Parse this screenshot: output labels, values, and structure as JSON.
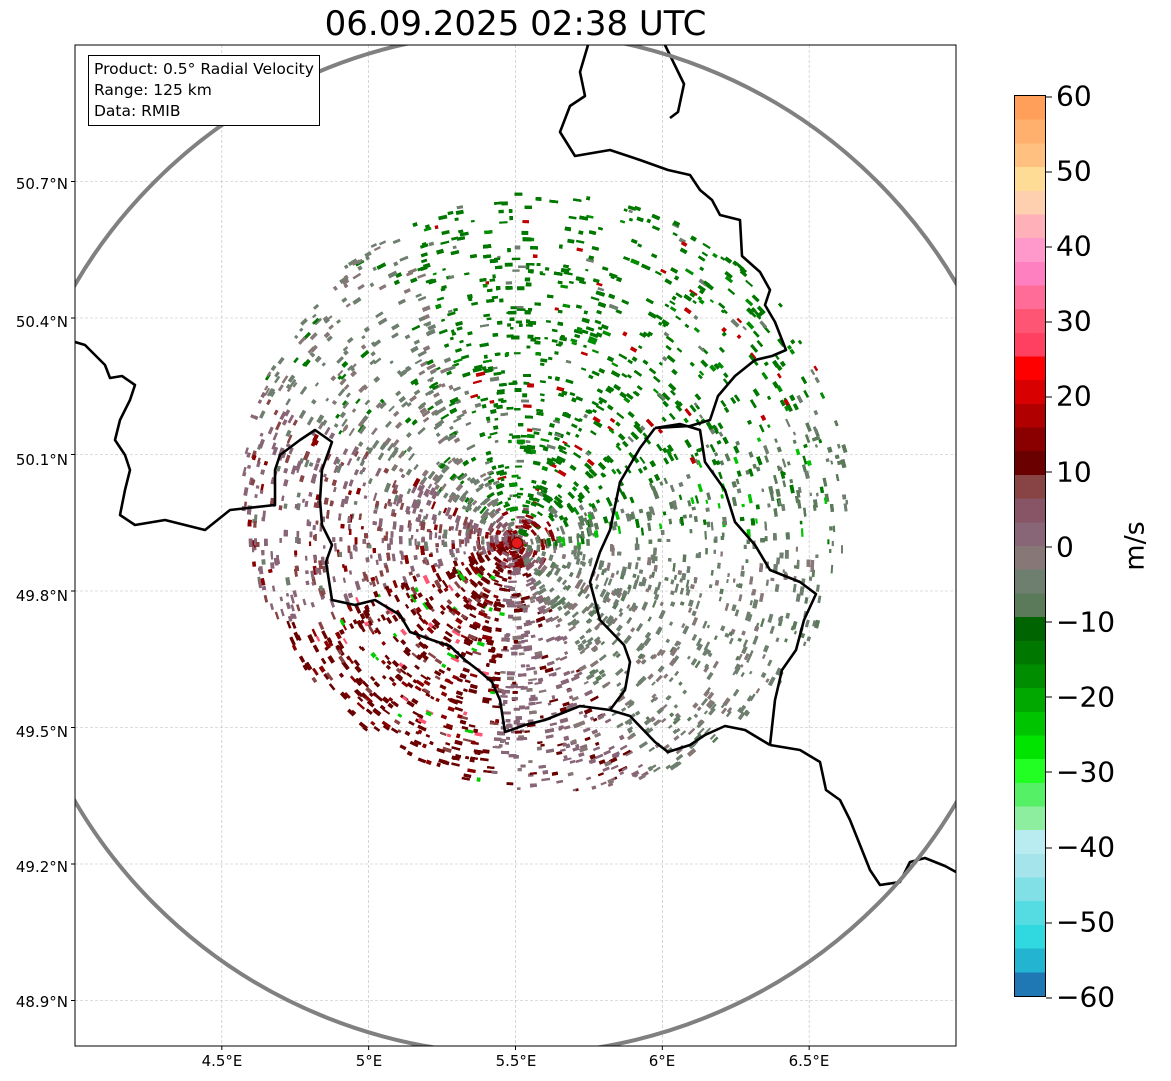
{
  "title": "06.09.2025 02:38 UTC",
  "info_box": {
    "product": "Product: 0.5° Radial Velocity",
    "range": "Range: 125 km",
    "data": "Data: RMIB"
  },
  "axes": {
    "lon_ticks": [
      "4.5°E",
      "5°E",
      "5.5°E",
      "6°E",
      "6.5°E"
    ],
    "lat_ticks": [
      "50.7°N",
      "50.4°N",
      "50.1°N",
      "49.8°N",
      "49.5°N",
      "49.2°N",
      "48.9°N"
    ],
    "lon_range": [
      4.0,
      7.0
    ],
    "lat_range": [
      48.8,
      51.0
    ]
  },
  "radar": {
    "lon": 5.505,
    "lat": 49.914,
    "range_km": 125,
    "marker_color": "#e41a1c"
  },
  "colorbar": {
    "label": "m/s",
    "ticks": [
      "60",
      "50",
      "40",
      "30",
      "20",
      "10",
      "0",
      "−10",
      "−20",
      "−30",
      "−40",
      "−50",
      "−60"
    ],
    "range": [
      -60,
      60
    ],
    "colors": [
      "#ff9f5a",
      "#ffb06c",
      "#ffc080",
      "#ffdc96",
      "#ffd0b0",
      "#ffb0b8",
      "#ff99cc",
      "#ff80c0",
      "#ff6c98",
      "#ff5575",
      "#ff4060",
      "#ff0000",
      "#d80000",
      "#b00000",
      "#8a0000",
      "#6a0000",
      "#884444",
      "#885566",
      "#886677",
      "#887777",
      "#6f7f6f",
      "#5a7a5a",
      "#006400",
      "#007800",
      "#008e00",
      "#00a800",
      "#00c400",
      "#00e400",
      "#22ff22",
      "#55f066",
      "#8eeea0",
      "#b8ecf0",
      "#a4e4ea",
      "#80e0e6",
      "#55dce2",
      "#30d8e0",
      "#22b4d0",
      "#1f77b4"
    ]
  }
}
